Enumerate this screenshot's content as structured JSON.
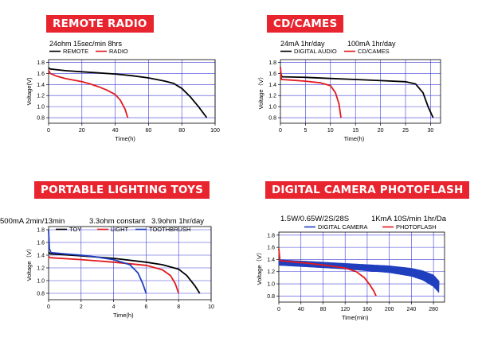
{
  "panels": [
    {
      "banner": "REMOTE RADIO",
      "conditions": [
        "24ohm 15sec/min 8hrs"
      ],
      "chart_data": {
        "type": "line",
        "title": "",
        "xlabel": "Time(h)",
        "ylabel": "Voltage(V)",
        "xlim": [
          0,
          100
        ],
        "ylim": [
          0.7,
          1.85
        ],
        "xticks": [
          "0",
          "20",
          "40",
          "60",
          "80",
          "100"
        ],
        "yticks": [
          "0.8",
          "1.0",
          "1.2",
          "1.4",
          "1.6",
          "1.8"
        ],
        "legend": "top-left",
        "grid": true,
        "series": [
          {
            "name": "REMOTE",
            "color": "#000000",
            "x": [
              0,
              1,
              10,
              20,
              30,
              40,
              50,
              60,
              70,
              75,
              80,
              85,
              90,
              95
            ],
            "y": [
              1.7,
              1.68,
              1.65,
              1.63,
              1.61,
              1.59,
              1.56,
              1.52,
              1.46,
              1.42,
              1.33,
              1.18,
              1.0,
              0.8
            ]
          },
          {
            "name": "RADIO",
            "color": "#e31a1c",
            "x": [
              0,
              1,
              5,
              10,
              15,
              20,
              25,
              30,
              35,
              40,
              43,
              46,
              47.5
            ],
            "y": [
              1.66,
              1.6,
              1.55,
              1.51,
              1.48,
              1.45,
              1.41,
              1.36,
              1.3,
              1.22,
              1.12,
              0.95,
              0.8
            ]
          }
        ]
      }
    },
    {
      "banner": "CD/CAMES",
      "conditions": [
        "24mA 1hr/day",
        "100mA 1hr/day"
      ],
      "chart_data": {
        "type": "line",
        "title": "",
        "xlabel": "Time(h)",
        "ylabel": "Voltage（V）",
        "xlim": [
          0,
          32
        ],
        "ylim": [
          0.7,
          1.85
        ],
        "xticks": [
          "0",
          "5",
          "10",
          "15",
          "20",
          "25",
          "30"
        ],
        "yticks": [
          "0.8",
          "1.0",
          "1.2",
          "1.4",
          "1.6",
          "1.8"
        ],
        "legend": "top",
        "grid": true,
        "series": [
          {
            "name": "DIGITAL AUDIO",
            "color": "#000000",
            "x": [
              0,
              0.3,
              5,
              10,
              15,
              20,
              25,
              27,
              28.5,
              29.5,
              30.5
            ],
            "y": [
              1.62,
              1.54,
              1.53,
              1.51,
              1.49,
              1.47,
              1.45,
              1.41,
              1.25,
              1.0,
              0.8
            ]
          },
          {
            "name": "CD/CAMES",
            "color": "#e31a1c",
            "x": [
              0,
              0.2,
              2,
              5,
              8,
              10,
              11,
              11.7,
              12.1
            ],
            "y": [
              1.72,
              1.49,
              1.48,
              1.46,
              1.43,
              1.38,
              1.25,
              1.05,
              0.8
            ]
          }
        ]
      }
    },
    {
      "banner": "PORTABLE LIGHTING TOYS",
      "conditions": [
        "500mA 2min/13min",
        "3.3ohm constant",
        "3.9ohm 1hr/day"
      ],
      "chart_data": {
        "type": "line",
        "title": "",
        "xlabel": "Time(h)",
        "ylabel": "Voltage（V）",
        "xlim": [
          0,
          10
        ],
        "ylim": [
          0.7,
          1.85
        ],
        "xticks": [
          "0",
          "2",
          "4",
          "6",
          "8",
          "10"
        ],
        "yticks": [
          "0.8",
          "1.0",
          "1.2",
          "1.4",
          "1.6",
          "1.8"
        ],
        "legend": "top-right",
        "grid": true,
        "series": [
          {
            "name": "TOY",
            "color": "#000000",
            "x": [
              0,
              0.1,
              2,
              4,
              6,
              7,
              8,
              8.5,
              9,
              9.3
            ],
            "y": [
              1.45,
              1.42,
              1.39,
              1.35,
              1.29,
              1.25,
              1.18,
              1.08,
              0.92,
              0.8
            ]
          },
          {
            "name": "LIGHT",
            "color": "#e31a1c",
            "x": [
              0,
              0.1,
              2,
              4,
              6,
              7,
              7.5,
              7.8,
              8.0
            ],
            "y": [
              1.38,
              1.36,
              1.33,
              1.29,
              1.24,
              1.17,
              1.08,
              0.95,
              0.8
            ]
          },
          {
            "name": "TOOTHBRUSH",
            "color": "#1f3fbf",
            "x": [
              0,
              0.05,
              0.15,
              1,
              2,
              3,
              4,
              5,
              5.5,
              5.8,
              6.0
            ],
            "y": [
              1.8,
              1.5,
              1.44,
              1.42,
              1.4,
              1.37,
              1.33,
              1.25,
              1.12,
              0.95,
              0.8
            ]
          }
        ]
      }
    },
    {
      "banner": "DIGITAL CAMERA PHOTOFLASH",
      "conditions": [
        "1.5W/0.65W/2S/28S",
        "1KmA 10S/min 1hr/Da"
      ],
      "chart_data": {
        "type": "line",
        "title": "",
        "xlabel": "Time(min)",
        "ylabel": "Voltage（V）",
        "xlim": [
          0,
          300
        ],
        "ylim": [
          0.7,
          1.85
        ],
        "xticks": [
          "0",
          "40",
          "80",
          "120",
          "160",
          "200",
          "240",
          "280"
        ],
        "yticks": [
          "0.8",
          "1.0",
          "1.2",
          "1.4",
          "1.6",
          "1.8"
        ],
        "legend": "top",
        "grid": true,
        "series": [
          {
            "name": "DIGITAL CAMERA",
            "color": "#1f3fbf",
            "band": true,
            "x": [
              0,
              40,
              80,
              120,
              160,
              200,
              240,
              260,
              280,
              290
            ],
            "y_high": [
              1.4,
              1.38,
              1.36,
              1.34,
              1.32,
              1.3,
              1.26,
              1.22,
              1.15,
              1.05
            ],
            "y_low": [
              1.3,
              1.28,
              1.26,
              1.24,
              1.21,
              1.18,
              1.12,
              1.06,
              0.95,
              0.85
            ]
          },
          {
            "name": "PHOTOFLASH",
            "color": "#e31a1c",
            "x": [
              0,
              2,
              40,
              80,
              120,
              140,
              155,
              165,
              172,
              176
            ],
            "y": [
              1.58,
              1.38,
              1.35,
              1.31,
              1.26,
              1.2,
              1.1,
              0.98,
              0.88,
              0.8
            ]
          }
        ]
      }
    }
  ]
}
